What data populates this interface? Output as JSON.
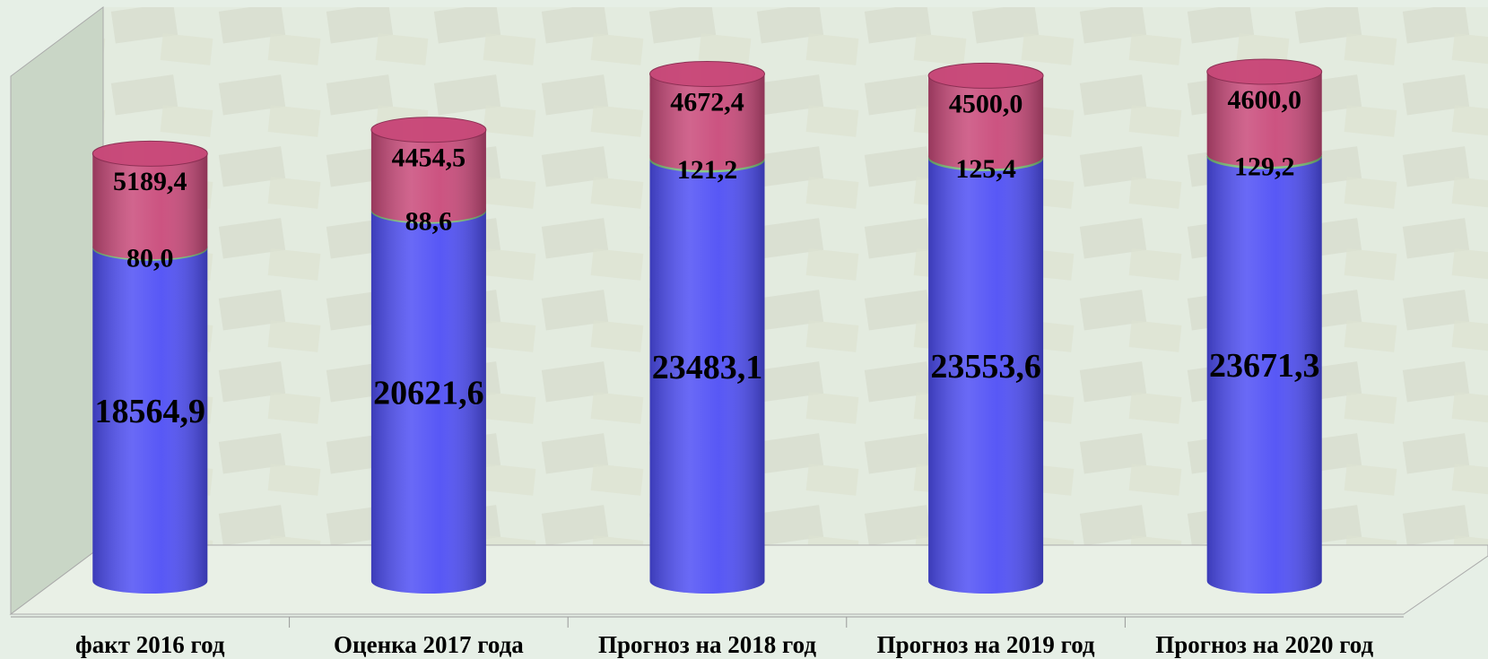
{
  "chart_data": {
    "type": "bar",
    "stacked": true,
    "categories": [
      "факт 2016 год",
      "Оценка 2017 года",
      "Прогноз на 2018 год",
      "Прогноз на 2019 год",
      "Прогноз на 2020 год"
    ],
    "series": [
      {
        "color": "#4f4ff5",
        "values": [
          18564.9,
          20621.6,
          23483.1,
          23553.6,
          23671.3
        ],
        "value_labels": [
          "18564,9",
          "20621,6",
          "23483,1",
          "23553,6",
          "23671,3"
        ]
      },
      {
        "color": "#7cc47a",
        "values": [
          80.0,
          88.6,
          121.2,
          125.4,
          129.2
        ],
        "value_labels": [
          "80,0",
          "88,6",
          "121,2",
          "125,4",
          "129,2"
        ]
      },
      {
        "color": "#c94a7a",
        "values": [
          5189.4,
          4454.5,
          4672.4,
          4500.0,
          4600.0
        ],
        "value_labels": [
          "5189,4",
          "4454,5",
          "4672,4",
          "4500,0",
          "4600,0"
        ]
      }
    ]
  }
}
